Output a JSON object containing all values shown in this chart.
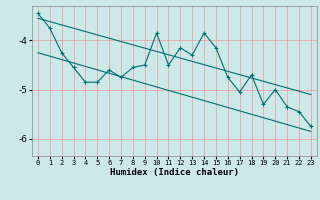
{
  "xlabel": "Humidex (Indice chaleur)",
  "bg_color": "#cce8e8",
  "line_color": "#007070",
  "grid_color": "#ee9999",
  "xlim": [
    -0.5,
    23.5
  ],
  "ylim": [
    -6.35,
    -3.3
  ],
  "yticks": [
    -6,
    -5,
    -4
  ],
  "main_x": [
    0,
    1,
    2,
    3,
    4,
    5,
    6,
    7,
    8,
    9,
    10,
    11,
    12,
    13,
    14,
    15,
    16,
    17,
    18,
    19,
    20,
    21,
    22,
    23
  ],
  "main_y": [
    -3.45,
    -3.75,
    -4.25,
    -4.55,
    -4.85,
    -4.85,
    -4.6,
    -4.75,
    -4.55,
    -4.5,
    -3.85,
    -4.5,
    -4.15,
    -4.3,
    -3.85,
    -4.15,
    -4.75,
    -5.05,
    -4.7,
    -5.3,
    -5.0,
    -5.35,
    -5.45,
    -5.75
  ],
  "line1_x": [
    0,
    23
  ],
  "line1_y": [
    -3.55,
    -5.1
  ],
  "line2_x": [
    0,
    23
  ],
  "line2_y": [
    -4.25,
    -5.85
  ]
}
